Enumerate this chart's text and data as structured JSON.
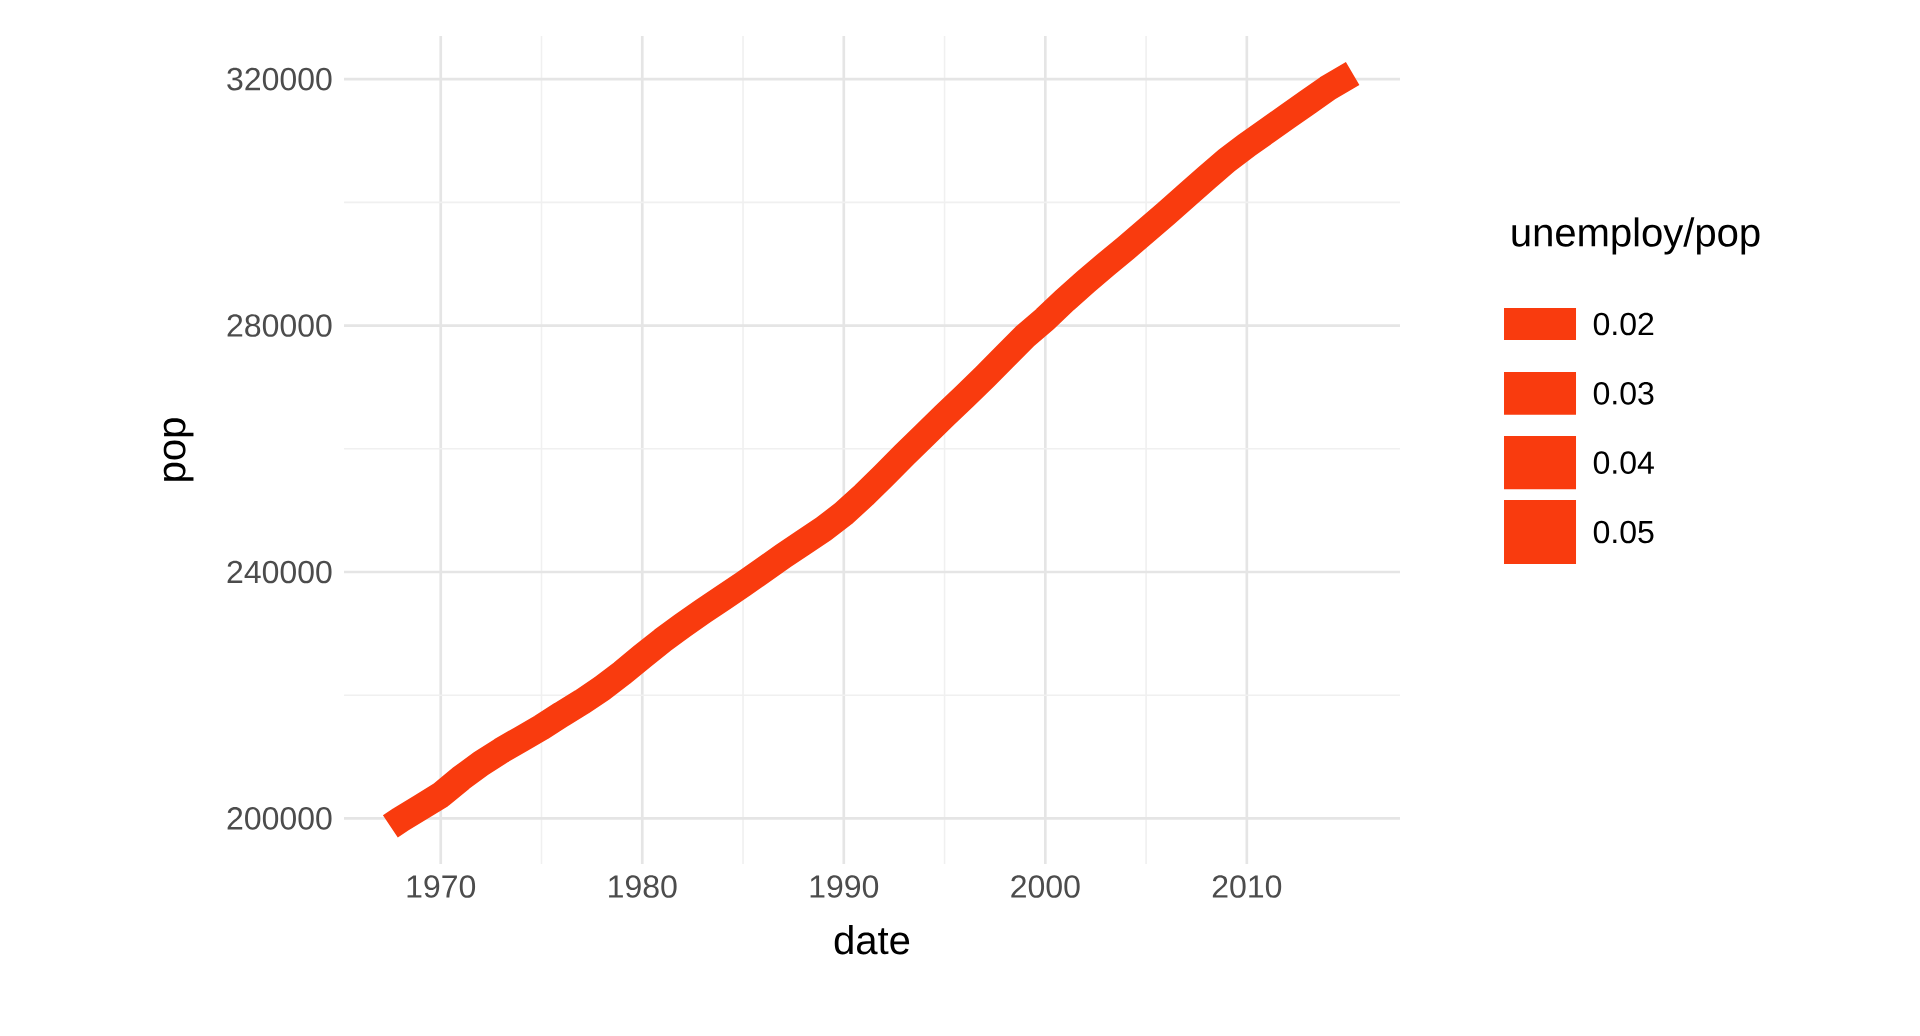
{
  "chart_data": {
    "type": "line",
    "xlabel": "date",
    "ylabel": "pop",
    "legend_title": "unemploy/pop",
    "annotations": [
      "0.02",
      "0.03",
      "0.04",
      "0.05"
    ],
    "x": [
      1967.5,
      1968,
      1969,
      1970,
      1971,
      1972,
      1973,
      1974,
      1975,
      1976,
      1977,
      1978,
      1979,
      1980,
      1981,
      1982,
      1983,
      1984,
      1985,
      1986,
      1987,
      1988,
      1989,
      1990,
      1991,
      1992,
      1993,
      1994,
      1995,
      1996,
      1997,
      1998,
      1999,
      2000,
      2001,
      2002,
      2003,
      2004,
      2005,
      2006,
      2007,
      2008,
      2009,
      2010,
      2011,
      2012,
      2013,
      2014,
      2015.25
    ],
    "series": [
      {
        "color": "#f93b0e",
        "values": [
          198700,
          199800,
          201800,
          203800,
          206500,
          208900,
          211000,
          212900,
          214800,
          216900,
          218900,
          221100,
          223600,
          226300,
          228900,
          231300,
          233600,
          235800,
          238000,
          240300,
          242600,
          244800,
          247000,
          249500,
          252500,
          255700,
          259000,
          262200,
          265400,
          268500,
          271700,
          275000,
          278300,
          281100,
          284200,
          287100,
          289900,
          292600,
          295400,
          298200,
          301100,
          304000,
          306800,
          309300,
          311600,
          313900,
          316200,
          318500,
          320900
        ]
      }
    ],
    "xlim": [
      1965.2,
      2017.6
    ],
    "ylim": [
      192600,
      327000
    ],
    "xticks": [
      1970,
      1980,
      1990,
      2000,
      2010
    ],
    "yticks": [
      200000,
      240000,
      280000,
      320000
    ],
    "grid": true
  }
}
